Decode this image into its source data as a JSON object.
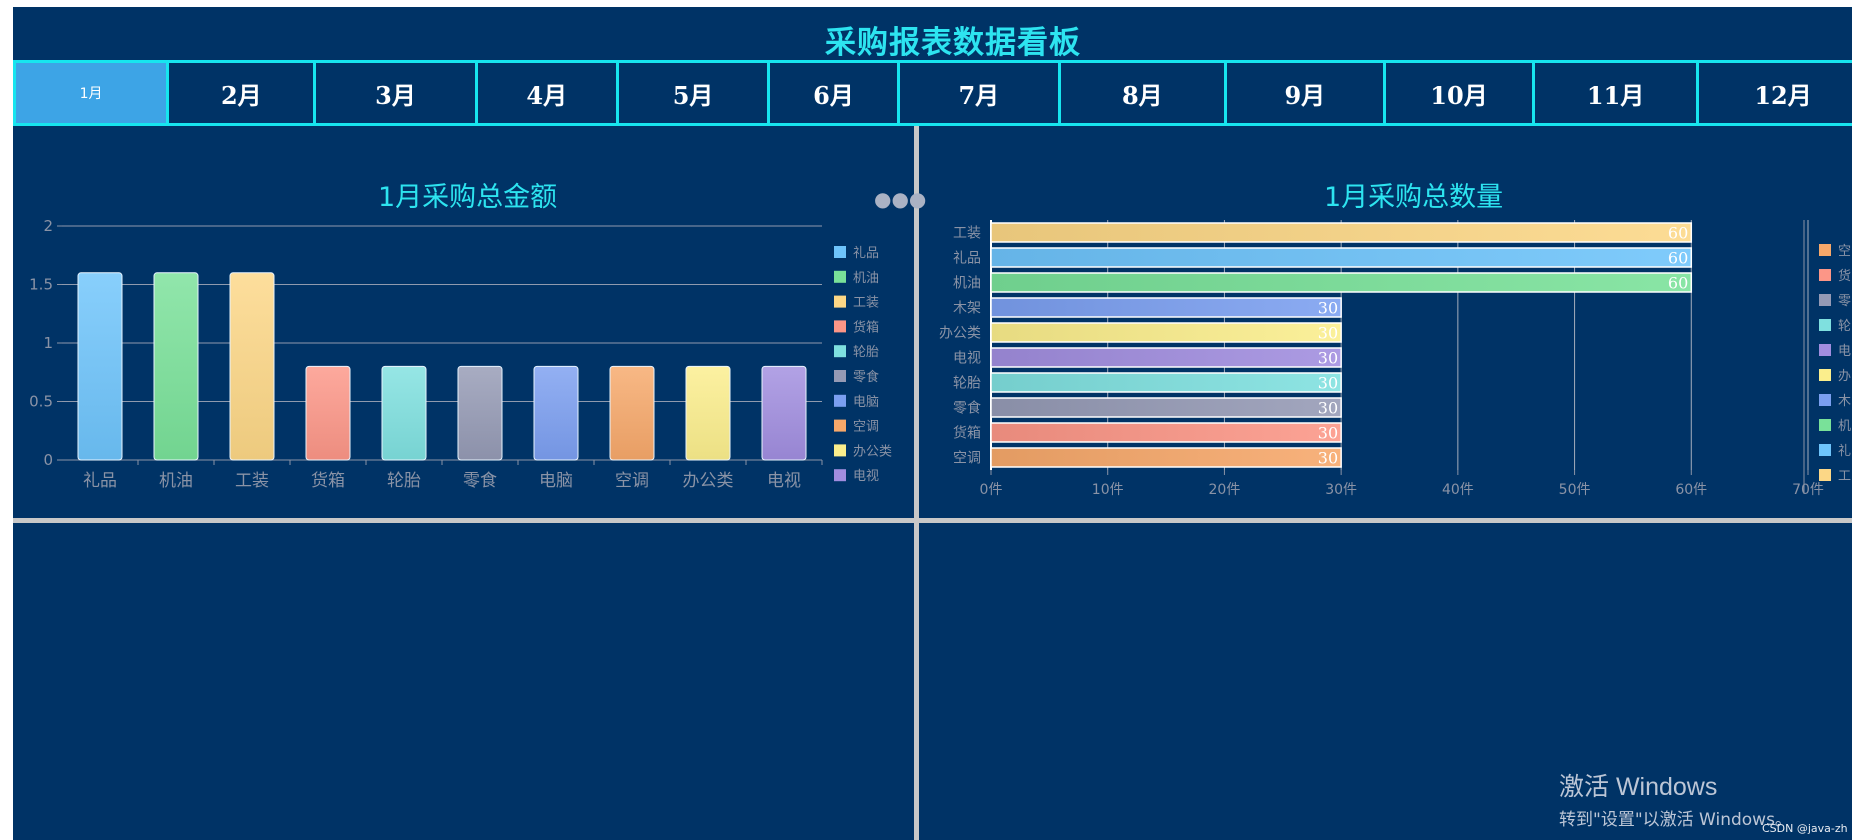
{
  "dashboard": {
    "title": "采购报表数据看板",
    "tabs": [
      "1月",
      "2月",
      "3月",
      "4月",
      "5月",
      "6月",
      "7月",
      "8月",
      "9月",
      "10月",
      "11月",
      "12月"
    ],
    "active_tab": "1月"
  },
  "colors": {
    "background": "#003366",
    "accent": "#2de4f0",
    "tab_border": "#17e5ef",
    "active_tab": "#3da4e6",
    "divider": "#c8c8c8",
    "item_palette": {
      "礼品": "#6ec4fb",
      "机油": "#79e199",
      "工装": "#fcd786",
      "货箱": "#fc9687",
      "轮胎": "#7fe0df",
      "零食": "#959ab5",
      "电脑": "#7b9ff0",
      "空调": "#f7a86a",
      "办公类": "#fbee8c",
      "电视": "#a18ddf",
      "木架": "#7b9ff0"
    }
  },
  "icons": {
    "more": "more-dots-icon"
  },
  "chart_data": [
    {
      "type": "bar",
      "title": "1月采购总金额",
      "categories": [
        "礼品",
        "机油",
        "工装",
        "货箱",
        "轮胎",
        "零食",
        "电脑",
        "空调",
        "办公类",
        "电视"
      ],
      "values": [
        1.6,
        1.6,
        1.6,
        0.8,
        0.8,
        0.8,
        0.8,
        0.8,
        0.8,
        0.8
      ],
      "ylim": [
        0,
        2
      ],
      "yticks": [
        "0",
        "0.5",
        "1",
        "1.5",
        "2"
      ],
      "xlabel": "",
      "ylabel": "",
      "grid": true,
      "legend": [
        "礼品",
        "机油",
        "工装",
        "货箱",
        "轮胎",
        "零食",
        "电脑",
        "空调",
        "办公类",
        "电视"
      ],
      "legend_position": "right"
    },
    {
      "type": "bar",
      "orientation": "horizontal",
      "title": "1月采购总数量",
      "categories": [
        "空调",
        "货箱",
        "零食",
        "轮胎",
        "电视",
        "办公类",
        "木架",
        "机油",
        "礼品",
        "工装"
      ],
      "values": [
        30,
        30,
        30,
        30,
        30,
        30,
        30,
        60,
        60,
        60
      ],
      "data_labels": [
        "30",
        "30",
        "30",
        "30",
        "30",
        "30",
        "30",
        "60",
        "60",
        "60"
      ],
      "xlim": [
        0,
        70
      ],
      "xticks": [
        "0件",
        "10件",
        "20件",
        "30件",
        "40件",
        "50件",
        "60件",
        "70件"
      ],
      "grid": true,
      "legend": [
        "空",
        "货",
        "零",
        "轮",
        "电",
        "办",
        "木",
        "机",
        "礼",
        "工"
      ],
      "legend_position": "right"
    }
  ],
  "watermark": {
    "title": "激活 Windows",
    "subtitle": "转到\"设置\"以激活 Windows。"
  },
  "credit": "CSDN @java-zh"
}
